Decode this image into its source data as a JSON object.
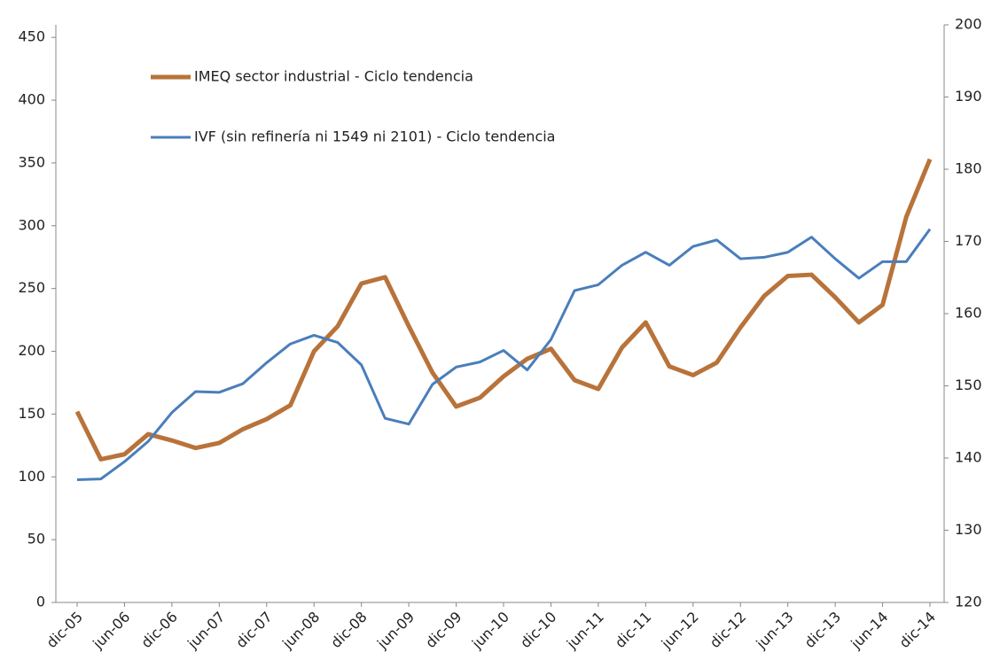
{
  "chart_data": {
    "type": "line",
    "categories": [
      "dic-05",
      null,
      "jun-06",
      null,
      "dic-06",
      null,
      "jun-07",
      null,
      "dic-07",
      null,
      "jun-08",
      null,
      "dic-08",
      null,
      "jun-09",
      null,
      "dic-09",
      null,
      "jun-10",
      null,
      "dic-10",
      null,
      "jun-11",
      null,
      "dic-11",
      null,
      "jun-12",
      null,
      "dic-12",
      null,
      "jun-13",
      null,
      "dic-13",
      null,
      "jun-14",
      null,
      "dic-14"
    ],
    "series": [
      {
        "name": "IMEQ sector industrial - Ciclo tendencia",
        "color": "#b8733a",
        "axis": "y",
        "values": [
          152,
          114,
          118,
          134,
          129,
          123,
          127,
          138,
          146,
          157,
          200,
          220,
          254,
          259,
          220,
          183,
          156,
          163,
          180,
          194,
          202,
          177,
          170,
          203,
          223,
          188,
          181,
          191,
          219,
          244,
          260,
          261,
          243,
          223,
          237,
          307,
          353
        ]
      },
      {
        "name": "IVF (sin refinería ni 1549 ni 2101) - Ciclo tendencia",
        "color": "#4a7ebb",
        "axis": "y2",
        "values": [
          137.0,
          137.1,
          139.5,
          142.3,
          146.3,
          149.2,
          149.1,
          150.3,
          153.2,
          155.8,
          157.0,
          156.0,
          152.9,
          145.5,
          144.7,
          150.2,
          152.6,
          153.3,
          154.9,
          152.2,
          156.4,
          163.2,
          164.0,
          166.7,
          168.5,
          166.7,
          169.3,
          170.2,
          167.6,
          167.8,
          168.5,
          170.6,
          167.6,
          164.9,
          167.2,
          167.2,
          171.7
        ]
      }
    ],
    "ylim": [
      0,
      460
    ],
    "yticks": [
      0,
      50,
      100,
      150,
      200,
      250,
      300,
      350,
      400,
      450
    ],
    "y2lim": [
      120,
      200
    ],
    "y2ticks": [
      120,
      130,
      140,
      150,
      160,
      170,
      180,
      190,
      200
    ],
    "legend": "upper left"
  }
}
